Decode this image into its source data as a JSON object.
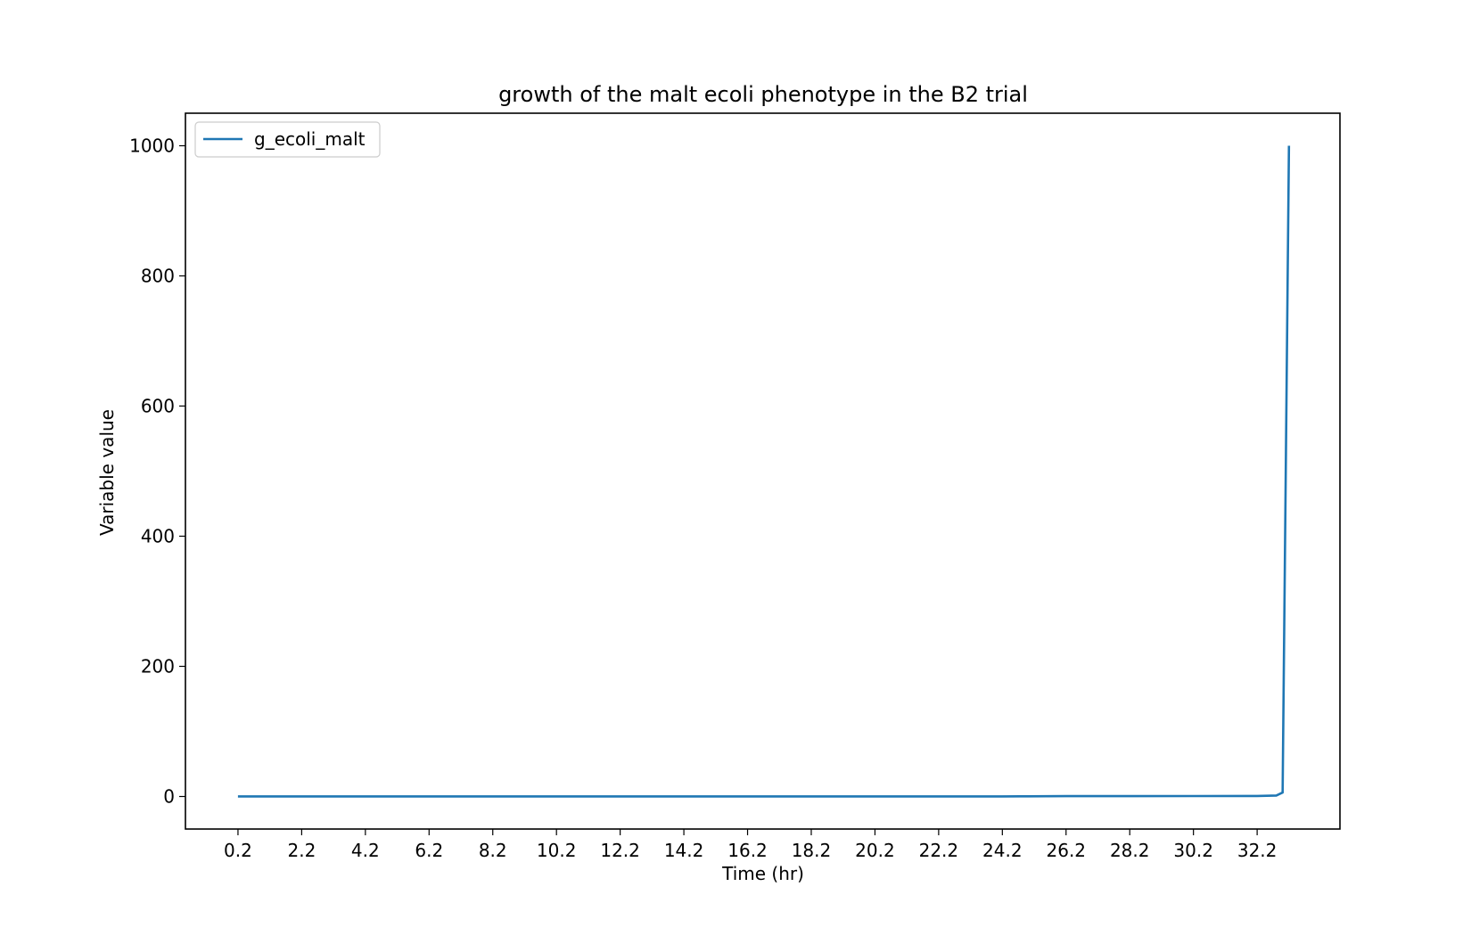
{
  "chart_data": {
    "type": "line",
    "title": "growth of the malt ecoli phenotype in the B2 trial",
    "xlabel": "Time (hr)",
    "ylabel": "Variable value",
    "xlim": [
      -1.45,
      34.8
    ],
    "ylim": [
      -50,
      1050
    ],
    "xticks": [
      0.2,
      2.2,
      4.2,
      6.2,
      8.2,
      10.2,
      12.2,
      14.2,
      16.2,
      18.2,
      20.2,
      22.2,
      24.2,
      26.2,
      28.2,
      30.2,
      32.2
    ],
    "xtick_labels": [
      "0.2",
      "2.2",
      "4.2",
      "6.2",
      "8.2",
      "10.2",
      "12.2",
      "14.2",
      "16.2",
      "18.2",
      "20.2",
      "22.2",
      "24.2",
      "26.2",
      "28.2",
      "30.2",
      "32.2"
    ],
    "yticks": [
      0,
      200,
      400,
      600,
      800,
      1000
    ],
    "ytick_labels": [
      "0",
      "200",
      "400",
      "600",
      "800",
      "1000"
    ],
    "grid": false,
    "legend_position": "top-left",
    "series": [
      {
        "name": "g_ecoli_malt",
        "color": "#1f77b4",
        "x": [
          0.2,
          4.2,
          8.2,
          12.2,
          16.2,
          20.2,
          24.2,
          25.0,
          26.2,
          28.2,
          30.2,
          32.2,
          32.8,
          33.0,
          33.2
        ],
        "y": [
          0.2,
          0.2,
          0.2,
          0.2,
          0.2,
          0.2,
          0.2,
          0.3,
          0.5,
          0.6,
          0.7,
          0.8,
          1.5,
          6,
          1000
        ]
      }
    ]
  }
}
